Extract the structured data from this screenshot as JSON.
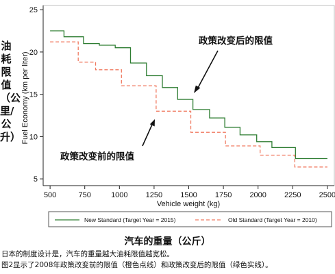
{
  "chart_data": {
    "type": "line",
    "step": true,
    "xlabel": "Vehicle weight (kg)",
    "ylabel": "Fuel Economy (km per liter)",
    "xlim": [
      450,
      2550
    ],
    "ylim": [
      4.2,
      25.5
    ],
    "xticks": [
      500,
      750,
      1000,
      1250,
      1500,
      1750,
      2000,
      2250,
      2500
    ],
    "yticks": [
      5,
      10,
      15,
      20,
      25
    ],
    "grid": false,
    "legend_position": "bottom",
    "series": [
      {
        "name": "New Standard (Target Year = 2015)",
        "color": "#2e7d32",
        "dash": "solid",
        "points": [
          [
            500,
            22.5
          ],
          [
            600,
            21.8
          ],
          [
            741,
            21.0
          ],
          [
            855,
            20.8
          ],
          [
            970,
            20.5
          ],
          [
            1080,
            18.7
          ],
          [
            1195,
            17.2
          ],
          [
            1310,
            15.8
          ],
          [
            1420,
            14.4
          ],
          [
            1530,
            13.2
          ],
          [
            1650,
            12.2
          ],
          [
            1760,
            11.1
          ],
          [
            1870,
            10.2
          ],
          [
            1990,
            9.4
          ],
          [
            2100,
            8.7
          ],
          [
            2270,
            7.4
          ],
          [
            2500,
            7.4
          ]
        ]
      },
      {
        "name": "Old Standard (Target Year = 2010)",
        "color": "#f07a60",
        "dash": "dashed",
        "points": [
          [
            500,
            21.2
          ],
          [
            703,
            18.8
          ],
          [
            828,
            17.9
          ],
          [
            1015,
            16.0
          ],
          [
            1265,
            13.0
          ],
          [
            1515,
            10.5
          ],
          [
            1765,
            8.9
          ],
          [
            2015,
            7.8
          ],
          [
            2265,
            6.4
          ],
          [
            2500,
            6.4
          ]
        ]
      }
    ],
    "annotations": {
      "after_label": "政策改变后的限值",
      "before_label": "政策改变前的限值"
    }
  },
  "labels": {
    "cn_ylabel": "油耗限值（公里/公升）",
    "cn_xlabel": "汽车的重量（公斤）"
  },
  "caption": {
    "line1": "日本的制度设计是，汽车的重量越大油耗限值越宽松。",
    "line2": "图2显示了2008年政策改变前的限值（橙色点线）和政策改变后的限值（绿色实线）。"
  }
}
